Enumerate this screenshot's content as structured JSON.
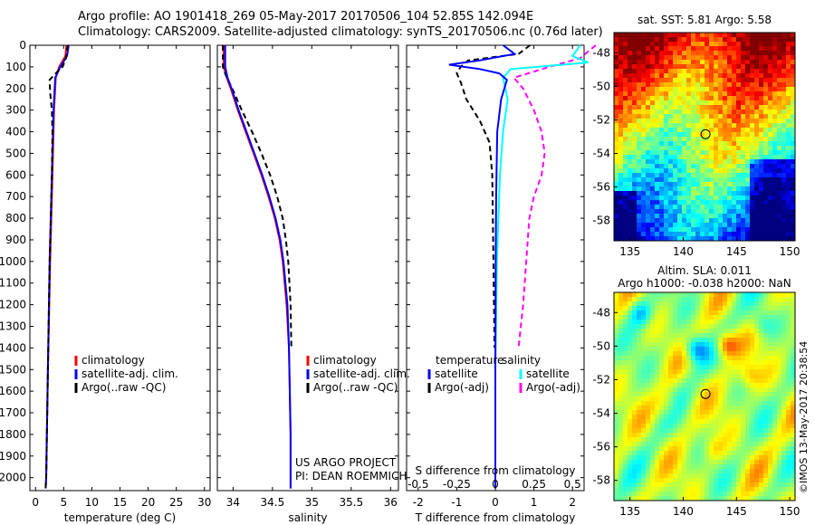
{
  "header": {
    "line1": "Argo profile: AO 1901418_269 05-May-2017 20170506_104 52.85S 142.094E",
    "line2": "Climatology: CARS2009. Satellite-adjusted climatology: synTS_20170506.nc (0.76d later)"
  },
  "colors": {
    "climatology": "#ff0000",
    "satellite": "#0000ff",
    "argo": "#000000",
    "t_diff_satellite": "#0000ff",
    "s_diff_satellite": "#00ffff",
    "s_diff_argo": "#ff00ff"
  },
  "chart_data": [
    {
      "type": "line",
      "panel": "temperature",
      "xlabel": "temperature (deg C)",
      "xlim": [
        -1,
        31
      ],
      "xticks": [
        0,
        5,
        10,
        15,
        20,
        25,
        30
      ],
      "ylim": [
        2060,
        0
      ],
      "yticks": [
        0,
        100,
        200,
        300,
        400,
        500,
        600,
        700,
        800,
        900,
        1000,
        1100,
        1200,
        1300,
        1400,
        1500,
        1600,
        1700,
        1800,
        1900,
        2000
      ],
      "legend": [
        "climatology",
        "satellite-adj. clim.",
        "Argo(..raw -QC)"
      ],
      "series": [
        {
          "name": "climatology",
          "depth": [
            0,
            50,
            100,
            150,
            300,
            600,
            1000,
            1500,
            2000,
            2050
          ],
          "values": [
            5.5,
            5.3,
            4.2,
            3.6,
            3.3,
            3.0,
            2.6,
            2.2,
            1.9,
            1.8
          ]
        },
        {
          "name": "satellite-adj. clim.",
          "depth": [
            0,
            50,
            100,
            150,
            300,
            600,
            1000,
            1500,
            2000,
            2050
          ],
          "values": [
            5.9,
            5.6,
            4.4,
            3.5,
            3.2,
            2.9,
            2.5,
            2.2,
            1.9,
            1.8
          ]
        },
        {
          "name": "Argo(..raw -QC)",
          "depth": [
            0,
            60,
            100,
            130,
            160,
            220,
            300,
            400,
            600,
            1000,
            1500,
            2000,
            2050
          ],
          "values": [
            5.7,
            5.4,
            4.8,
            3.6,
            2.5,
            2.6,
            2.9,
            3.0,
            2.9,
            2.5,
            2.2,
            1.9,
            1.8
          ]
        }
      ]
    },
    {
      "type": "line",
      "panel": "salinity",
      "xlabel": "salinity",
      "xlim": [
        33.8,
        36.1
      ],
      "xticks": [
        34,
        34.5,
        35,
        35.5,
        36
      ],
      "ylim": [
        2060,
        0
      ],
      "legend": [
        "climatology",
        "satellite-adj. clim.",
        "Argo(..raw -QC)"
      ],
      "annotation": [
        "US ARGO PROJECT",
        "PI: DEAN ROEMMICH"
      ],
      "series": [
        {
          "name": "climatology",
          "depth": [
            0,
            100,
            150,
            200,
            300,
            400,
            500,
            600,
            700,
            800,
            900,
            1000,
            1200,
            1400,
            1600,
            1800,
            2000,
            2050
          ],
          "values": [
            33.88,
            33.88,
            33.92,
            33.97,
            34.06,
            34.16,
            34.26,
            34.36,
            34.45,
            34.53,
            34.59,
            34.63,
            34.68,
            34.71,
            34.72,
            34.73,
            34.73,
            34.73
          ]
        },
        {
          "name": "satellite-adj. clim.",
          "depth": [
            0,
            100,
            150,
            200,
            300,
            400,
            500,
            600,
            700,
            800,
            900,
            1000,
            1200,
            1400,
            1600,
            1800,
            2000,
            2050
          ],
          "values": [
            33.9,
            33.9,
            33.93,
            33.98,
            34.07,
            34.17,
            34.27,
            34.37,
            34.46,
            34.54,
            34.6,
            34.64,
            34.69,
            34.71,
            34.72,
            34.73,
            34.73,
            34.73
          ]
        },
        {
          "name": "Argo(..raw -QC)",
          "depth": [
            0,
            100,
            150,
            200,
            300,
            400,
            500,
            600,
            700,
            800,
            900,
            1000,
            1200,
            1400
          ],
          "values": [
            33.87,
            33.87,
            33.92,
            33.99,
            34.11,
            34.24,
            34.36,
            34.47,
            34.56,
            34.63,
            34.67,
            34.7,
            34.73,
            34.74
          ]
        }
      ]
    },
    {
      "type": "line",
      "panel": "difference",
      "xlabel": "T difference from climatology",
      "xlabel2": "S difference from climatology",
      "xlim": [
        -2.3,
        2.3
      ],
      "xticks": [
        -2,
        -1,
        0,
        1,
        2
      ],
      "xticks2_labels": [
        "-0.5",
        "-0.25",
        "0",
        "0.25",
        "0.5"
      ],
      "ylim": [
        2060,
        0
      ],
      "legend_headers": [
        "temperature",
        "salinity"
      ],
      "legend": [
        "satellite",
        "Argo(-adj)",
        "satellite",
        "Argo(-adj)"
      ],
      "series": [
        {
          "name": "satellite",
          "depth": [
            0,
            40,
            70,
            90,
            110,
            130,
            160,
            250,
            400,
            700,
            1000,
            1500,
            2000,
            2050
          ],
          "values": [
            0.2,
            0.5,
            -0.4,
            -1.2,
            -0.4,
            0.1,
            0.3,
            0.15,
            0.05,
            0.02,
            0.01,
            0.0,
            0.0,
            0.0
          ]
        },
        {
          "name": "Argo(-adj)",
          "depth": [
            0,
            40,
            70,
            100,
            130,
            170,
            250,
            350,
            450,
            600,
            1000,
            1400
          ],
          "values": [
            0.9,
            0.6,
            -0.7,
            -0.9,
            -1.0,
            -0.9,
            -0.75,
            -0.4,
            -0.15,
            -0.08,
            -0.05,
            -0.02
          ]
        },
        {
          "name": "satellite",
          "depth": [
            0,
            50,
            80,
            110,
            150,
            250,
            400,
            600,
            800,
            1000,
            1500,
            2000,
            2050
          ],
          "values": [
            0.55,
            0.5,
            0.6,
            0.1,
            0.05,
            0.08,
            0.05,
            0.03,
            0.02,
            0.01,
            0.0,
            0.0,
            0.0
          ]
        },
        {
          "name": "Argo(-adj)",
          "depth": [
            0,
            60,
            100,
            150,
            200,
            300,
            400,
            500,
            600,
            700,
            800,
            1000,
            1200,
            1400
          ],
          "values": [
            0.65,
            0.55,
            0.35,
            0.12,
            0.18,
            0.25,
            0.3,
            0.32,
            0.3,
            0.25,
            0.22,
            0.2,
            0.18,
            0.15
          ]
        }
      ]
    },
    {
      "type": "heatmap",
      "panel": "sst-map",
      "title": "sat. SST: 5.81 Argo: 5.58",
      "xlim": [
        133.5,
        150.5
      ],
      "xticks": [
        135,
        140,
        145,
        150
      ],
      "ylim": [
        -59.2,
        -46.8
      ],
      "yticks": [
        -48,
        -50,
        -52,
        -54,
        -56,
        -58
      ],
      "marker": {
        "lon": 142.094,
        "lat": -52.85
      }
    },
    {
      "type": "heatmap",
      "panel": "sla-map",
      "title_lines": [
        "Altim. SLA: 0.011",
        "Argo h1000: -0.038 h2000: NaN"
      ],
      "xlim": [
        133.5,
        150.5
      ],
      "xticks": [
        135,
        140,
        145,
        150
      ],
      "ylim": [
        -59.2,
        -46.8
      ],
      "yticks": [
        -48,
        -50,
        -52,
        -54,
        -56,
        -58
      ],
      "marker": {
        "lon": 142.094,
        "lat": -52.85
      },
      "side_label": "©IMOS 13-May-2017 20:38:54"
    }
  ]
}
